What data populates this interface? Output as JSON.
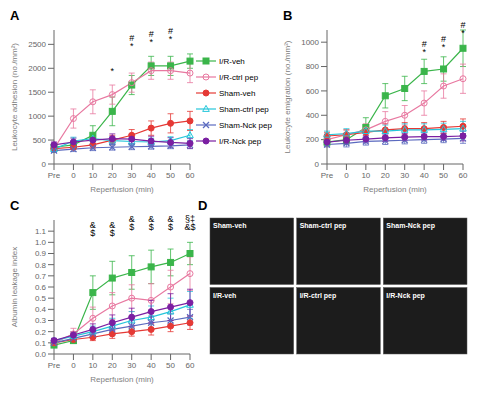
{
  "chart_data": [
    {
      "type": "line",
      "title": "A",
      "xlabel": "Reperfusion (min)",
      "ylabel": "Leukocyte adhesion (no./mm²)",
      "categories": [
        "Pre",
        "0",
        "10",
        "20",
        "30",
        "40",
        "50",
        "60"
      ],
      "ylim": [
        0,
        2800
      ],
      "yticks": [
        0,
        500,
        1000,
        1500,
        2000,
        2500
      ],
      "legend": "right",
      "series": [
        {
          "name": "I/R-veh",
          "color": "#3ab54a",
          "marker": "square",
          "values": [
            350,
            400,
            600,
            1100,
            1650,
            2050,
            2050,
            2150
          ],
          "errors": [
            50,
            60,
            200,
            300,
            200,
            200,
            200,
            150
          ]
        },
        {
          "name": "I/R-ctrl pep",
          "color": "#e878a0",
          "marker": "open_circle",
          "values": [
            320,
            950,
            1300,
            1450,
            1700,
            1950,
            1950,
            1900
          ],
          "errors": [
            50,
            200,
            250,
            200,
            200,
            180,
            180,
            200
          ]
        },
        {
          "name": "Sham-veh",
          "color": "#e53935",
          "marker": "circle",
          "values": [
            320,
            350,
            400,
            500,
            600,
            750,
            850,
            900
          ],
          "errors": [
            50,
            50,
            80,
            100,
            120,
            150,
            200,
            200
          ]
        },
        {
          "name": "Sham-ctrl pep",
          "color": "#26c6da",
          "marker": "open_triangle",
          "values": [
            310,
            480,
            530,
            490,
            470,
            460,
            490,
            600
          ],
          "errors": [
            50,
            80,
            100,
            80,
            80,
            80,
            80,
            120
          ]
        },
        {
          "name": "Sham-Nck pep",
          "color": "#5b6abf",
          "marker": "x",
          "values": [
            280,
            310,
            340,
            350,
            360,
            370,
            380,
            400
          ],
          "errors": [
            40,
            50,
            60,
            60,
            60,
            60,
            60,
            80
          ]
        },
        {
          "name": "I/R-Nck pep",
          "color": "#7b1fa2",
          "marker": "circle",
          "values": [
            400,
            460,
            500,
            530,
            520,
            480,
            450,
            430
          ],
          "errors": [
            60,
            80,
            100,
            100,
            100,
            100,
            100,
            100
          ]
        }
      ],
      "annotations": [
        {
          "x": "30",
          "y": 2380,
          "lines": [
            "#",
            "*"
          ]
        },
        {
          "x": "40",
          "y": 2470,
          "lines": [
            "#",
            "*"
          ]
        },
        {
          "x": "50",
          "y": 2530,
          "lines": [
            "#",
            "*"
          ]
        },
        {
          "x": "20",
          "y": 1870,
          "lines": [
            "*"
          ]
        }
      ]
    },
    {
      "type": "line",
      "title": "B",
      "xlabel": "Reperfusion (min)",
      "ylabel": "Leukocyte emigration (no./mm²)",
      "categories": [
        "Pre",
        "0",
        "10",
        "20",
        "30",
        "40",
        "50",
        "60"
      ],
      "ylim": [
        0,
        1100
      ],
      "yticks": [
        0,
        200,
        400,
        600,
        800,
        1000
      ],
      "series": [
        {
          "name": "I/R-veh",
          "color": "#3ab54a",
          "marker": "square",
          "values": [
            180,
            200,
            300,
            560,
            620,
            760,
            780,
            950
          ],
          "errors": [
            30,
            40,
            80,
            100,
            100,
            100,
            100,
            150
          ]
        },
        {
          "name": "I/R-ctrl pep",
          "color": "#e878a0",
          "marker": "open_circle",
          "values": [
            200,
            240,
            280,
            350,
            400,
            500,
            640,
            700
          ],
          "errors": [
            30,
            40,
            50,
            80,
            80,
            100,
            100,
            120
          ]
        },
        {
          "name": "Sham-veh",
          "color": "#e53935",
          "marker": "circle",
          "values": [
            230,
            240,
            260,
            280,
            290,
            290,
            300,
            310
          ],
          "errors": [
            30,
            40,
            50,
            50,
            50,
            50,
            50,
            60
          ]
        },
        {
          "name": "Sham-ctrl pep",
          "color": "#26c6da",
          "marker": "open_triangle",
          "values": [
            240,
            250,
            270,
            270,
            280,
            280,
            285,
            290
          ],
          "errors": [
            30,
            40,
            50,
            50,
            50,
            50,
            50,
            60
          ]
        },
        {
          "name": "Sham-Nck pep",
          "color": "#5b6abf",
          "marker": "x",
          "values": [
            160,
            170,
            185,
            190,
            195,
            200,
            205,
            210
          ],
          "errors": [
            20,
            30,
            30,
            30,
            30,
            30,
            30,
            40
          ]
        },
        {
          "name": "I/R-Nck pep",
          "color": "#7b1fa2",
          "marker": "circle",
          "values": [
            180,
            195,
            205,
            215,
            220,
            225,
            225,
            230
          ],
          "errors": [
            20,
            30,
            30,
            30,
            30,
            30,
            30,
            40
          ]
        }
      ],
      "annotations": [
        {
          "x": "40",
          "y": 890,
          "lines": [
            "#",
            "*"
          ]
        },
        {
          "x": "50",
          "y": 930,
          "lines": [
            "#",
            "*"
          ]
        },
        {
          "x": "60",
          "y": 1040,
          "lines": [
            "#",
            "*"
          ]
        }
      ]
    },
    {
      "type": "line",
      "title": "C",
      "xlabel": "Reperfusion (min)",
      "ylabel": "Albumin leakage index",
      "categories": [
        "Pre",
        "0",
        "10",
        "20",
        "30",
        "40",
        "50",
        "60"
      ],
      "ylim": [
        0.0,
        1.2
      ],
      "yticks": [
        {
          "value": 0,
          "label": "0.0"
        },
        0.1,
        0.2,
        0.3,
        0.4,
        0.5,
        0.6,
        0.7,
        0.8,
        0.9,
        {
          "value": 1,
          "label": "1.0"
        },
        1.1
      ],
      "series": [
        {
          "name": "I/R-veh",
          "color": "#3ab54a",
          "marker": "square",
          "values": [
            0.08,
            0.12,
            0.55,
            0.68,
            0.73,
            0.78,
            0.82,
            0.9
          ],
          "errors": [
            0.01,
            0.02,
            0.15,
            0.15,
            0.15,
            0.15,
            0.12,
            0.1
          ]
        },
        {
          "name": "I/R-ctrl pep",
          "color": "#e878a0",
          "marker": "open_circle",
          "values": [
            0.1,
            0.18,
            0.32,
            0.43,
            0.5,
            0.48,
            0.6,
            0.72
          ],
          "errors": [
            0.02,
            0.05,
            0.1,
            0.12,
            0.12,
            0.15,
            0.15,
            0.15
          ]
        },
        {
          "name": "Sham-veh",
          "color": "#e53935",
          "marker": "circle",
          "values": [
            0.1,
            0.13,
            0.15,
            0.18,
            0.2,
            0.22,
            0.25,
            0.28
          ],
          "errors": [
            0.02,
            0.02,
            0.03,
            0.04,
            0.04,
            0.05,
            0.05,
            0.06
          ]
        },
        {
          "name": "Sham-ctrl pep",
          "color": "#26c6da",
          "marker": "open_triangle",
          "values": [
            0.12,
            0.16,
            0.2,
            0.25,
            0.3,
            0.33,
            0.38,
            0.44
          ],
          "errors": [
            0.02,
            0.03,
            0.05,
            0.07,
            0.08,
            0.1,
            0.12,
            0.12
          ]
        },
        {
          "name": "Sham-Nck pep",
          "color": "#5b6abf",
          "marker": "x",
          "values": [
            0.1,
            0.14,
            0.18,
            0.22,
            0.25,
            0.28,
            0.3,
            0.33
          ],
          "errors": [
            0.02,
            0.02,
            0.04,
            0.05,
            0.05,
            0.06,
            0.06,
            0.07
          ]
        },
        {
          "name": "I/R-Nck pep",
          "color": "#7b1fa2",
          "marker": "circle",
          "values": [
            0.12,
            0.17,
            0.22,
            0.28,
            0.33,
            0.38,
            0.42,
            0.46
          ],
          "errors": [
            0.02,
            0.03,
            0.05,
            0.07,
            0.08,
            0.1,
            0.12,
            0.12
          ]
        }
      ],
      "annotations": [
        {
          "x": "10",
          "y": 1.05,
          "lines": [
            "&",
            "$"
          ]
        },
        {
          "x": "20",
          "y": 1.05,
          "lines": [
            "&",
            "$"
          ]
        },
        {
          "x": "30",
          "y": 1.1,
          "lines": [
            "&",
            "$"
          ]
        },
        {
          "x": "40",
          "y": 1.1,
          "lines": [
            "&",
            "$"
          ]
        },
        {
          "x": "50",
          "y": 1.1,
          "lines": [
            "&",
            "$"
          ]
        },
        {
          "x": "60",
          "y": 1.1,
          "lines": [
            "§‡",
            "&$"
          ]
        }
      ]
    },
    {
      "type": "image",
      "title": "D",
      "annotations": [
        "Sham-veh",
        "Sham-ctrl pep",
        "Sham-Nck pep",
        "I/R-veh",
        "I/R-ctrl pep",
        "I/R-Nck pep"
      ]
    }
  ]
}
